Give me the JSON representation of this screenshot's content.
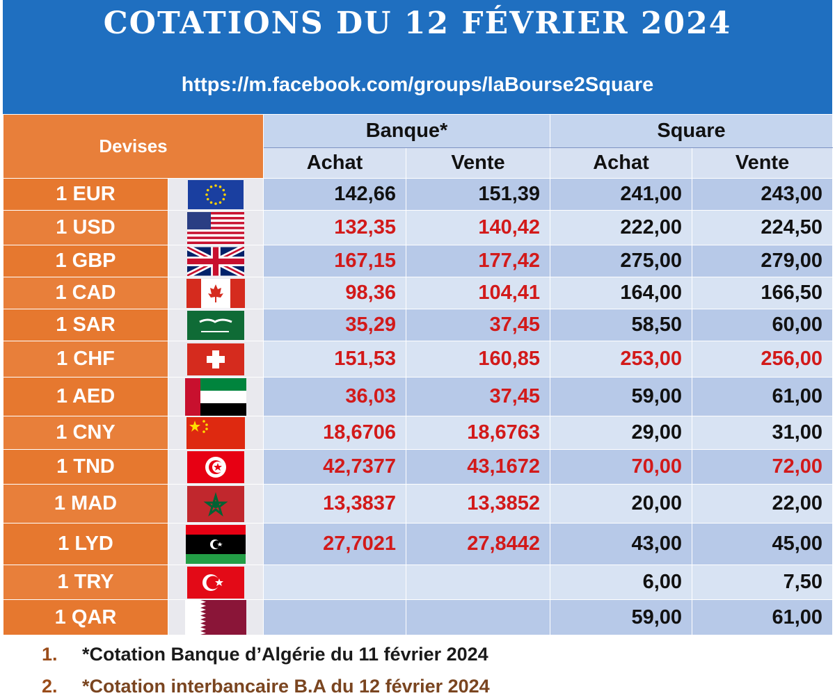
{
  "header": {
    "title": "COTATIONS DU 12 FÉVRIER 2024",
    "url": "https://m.facebook.com/groups/laBourse2Square"
  },
  "table": {
    "devises_label": "Devises",
    "group_bank": "Banque*",
    "group_square": "Square",
    "col_buy": "Achat",
    "col_sell": "Vente",
    "rows": [
      {
        "currency": "1 EUR",
        "flag": "eu-flag",
        "bank_buy": "142,66",
        "bank_sell": "151,39",
        "sq_buy": "241,00",
        "sq_sell": "243,00"
      },
      {
        "currency": "1 USD",
        "flag": "us-flag",
        "bank_buy": "132,35",
        "bank_sell": "140,42",
        "sq_buy": "222,00",
        "sq_sell": "224,50"
      },
      {
        "currency": "1 GBP",
        "flag": "uk-flag",
        "bank_buy": "167,15",
        "bank_sell": "177,42",
        "sq_buy": "275,00",
        "sq_sell": "279,00"
      },
      {
        "currency": "1 CAD",
        "flag": "canada-flag",
        "bank_buy": "98,36",
        "bank_sell": "104,41",
        "sq_buy": "164,00",
        "sq_sell": "166,50"
      },
      {
        "currency": "1 SAR",
        "flag": "saudi-flag",
        "bank_buy": "35,29",
        "bank_sell": "37,45",
        "sq_buy": "58,50",
        "sq_sell": "60,00"
      },
      {
        "currency": "1 CHF",
        "flag": "swiss-flag",
        "bank_buy": "151,53",
        "bank_sell": "160,85",
        "sq_buy": "253,00",
        "sq_sell": "256,00"
      },
      {
        "currency": "1 AED",
        "flag": "uae-flag",
        "bank_buy": "36,03",
        "bank_sell": "37,45",
        "sq_buy": "59,00",
        "sq_sell": "61,00"
      },
      {
        "currency": "1 CNY",
        "flag": "china-flag",
        "bank_buy": "18,6706",
        "bank_sell": "18,6763",
        "sq_buy": "29,00",
        "sq_sell": "31,00"
      },
      {
        "currency": "1 TND",
        "flag": "tunisia-flag",
        "bank_buy": "42,7377",
        "bank_sell": "43,1672",
        "sq_buy": "70,00",
        "sq_sell": "72,00"
      },
      {
        "currency": "1 MAD",
        "flag": "morocco-flag",
        "bank_buy": "13,3837",
        "bank_sell": "13,3852",
        "sq_buy": "20,00",
        "sq_sell": "22,00"
      },
      {
        "currency": "1 LYD",
        "flag": "libya-flag",
        "bank_buy": "27,7021",
        "bank_sell": "27,8442",
        "sq_buy": "43,00",
        "sq_sell": "45,00"
      },
      {
        "currency": "1 TRY",
        "flag": "turkey-flag",
        "bank_buy": "",
        "bank_sell": "",
        "sq_buy": "6,00",
        "sq_sell": "7,50"
      },
      {
        "currency": "1 QAR",
        "flag": "qatar-flag",
        "bank_buy": "",
        "bank_sell": "",
        "sq_buy": "59,00",
        "sq_sell": "61,00"
      }
    ]
  },
  "notes": [
    {
      "num": "1.",
      "text": "*Cotation Banque d’Algérie du 11 février 2024"
    },
    {
      "num": "2.",
      "text": "*Cotation interbancaire B.A du 12 février 2024"
    }
  ],
  "colors": {
    "banner_blue": "#1f6fc0",
    "orange": "#e87f3a",
    "value_red": "#d21a1a",
    "row_blue_dark": "#b7c9e8",
    "row_blue_light": "#d8e3f3"
  }
}
